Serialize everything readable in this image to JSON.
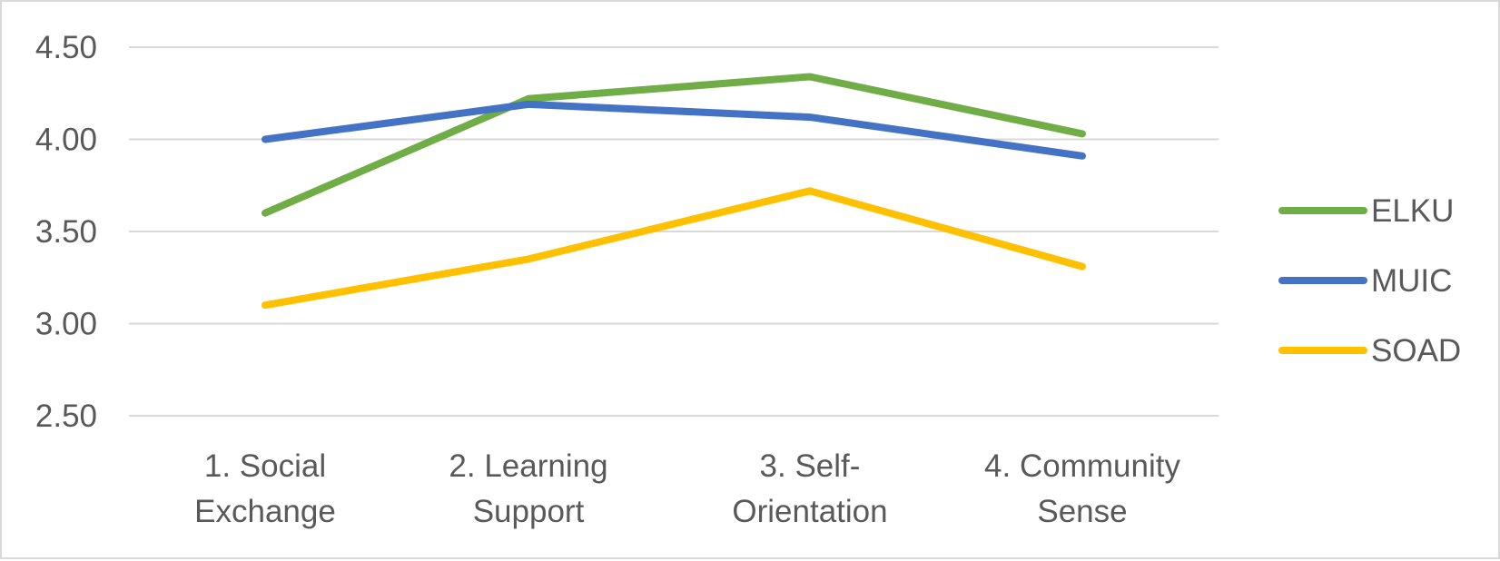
{
  "chart_data": {
    "type": "line",
    "title": "",
    "xlabel": "",
    "ylabel": "",
    "categories": [
      [
        "1. Social",
        "Exchange"
      ],
      [
        "2. Learning",
        "Support"
      ],
      [
        "3. Self-",
        "Orientation"
      ],
      [
        "4. Community",
        "Sense"
      ]
    ],
    "ylim": [
      2.5,
      4.5
    ],
    "yticks": [
      2.5,
      3.0,
      3.5,
      4.0,
      4.5
    ],
    "ytick_labels": [
      "2.50",
      "3.00",
      "3.50",
      "4.00",
      "4.50"
    ],
    "grid": true,
    "legend_position": "right",
    "series": [
      {
        "name": "ELKU",
        "color": "#70ad47",
        "values": [
          3.6,
          4.22,
          4.34,
          4.03
        ]
      },
      {
        "name": "MUIC",
        "color": "#4472c4",
        "values": [
          4.0,
          4.19,
          4.12,
          3.91
        ]
      },
      {
        "name": "SOAD",
        "color": "#ffc000",
        "values": [
          3.1,
          3.35,
          3.72,
          3.31
        ]
      }
    ]
  }
}
